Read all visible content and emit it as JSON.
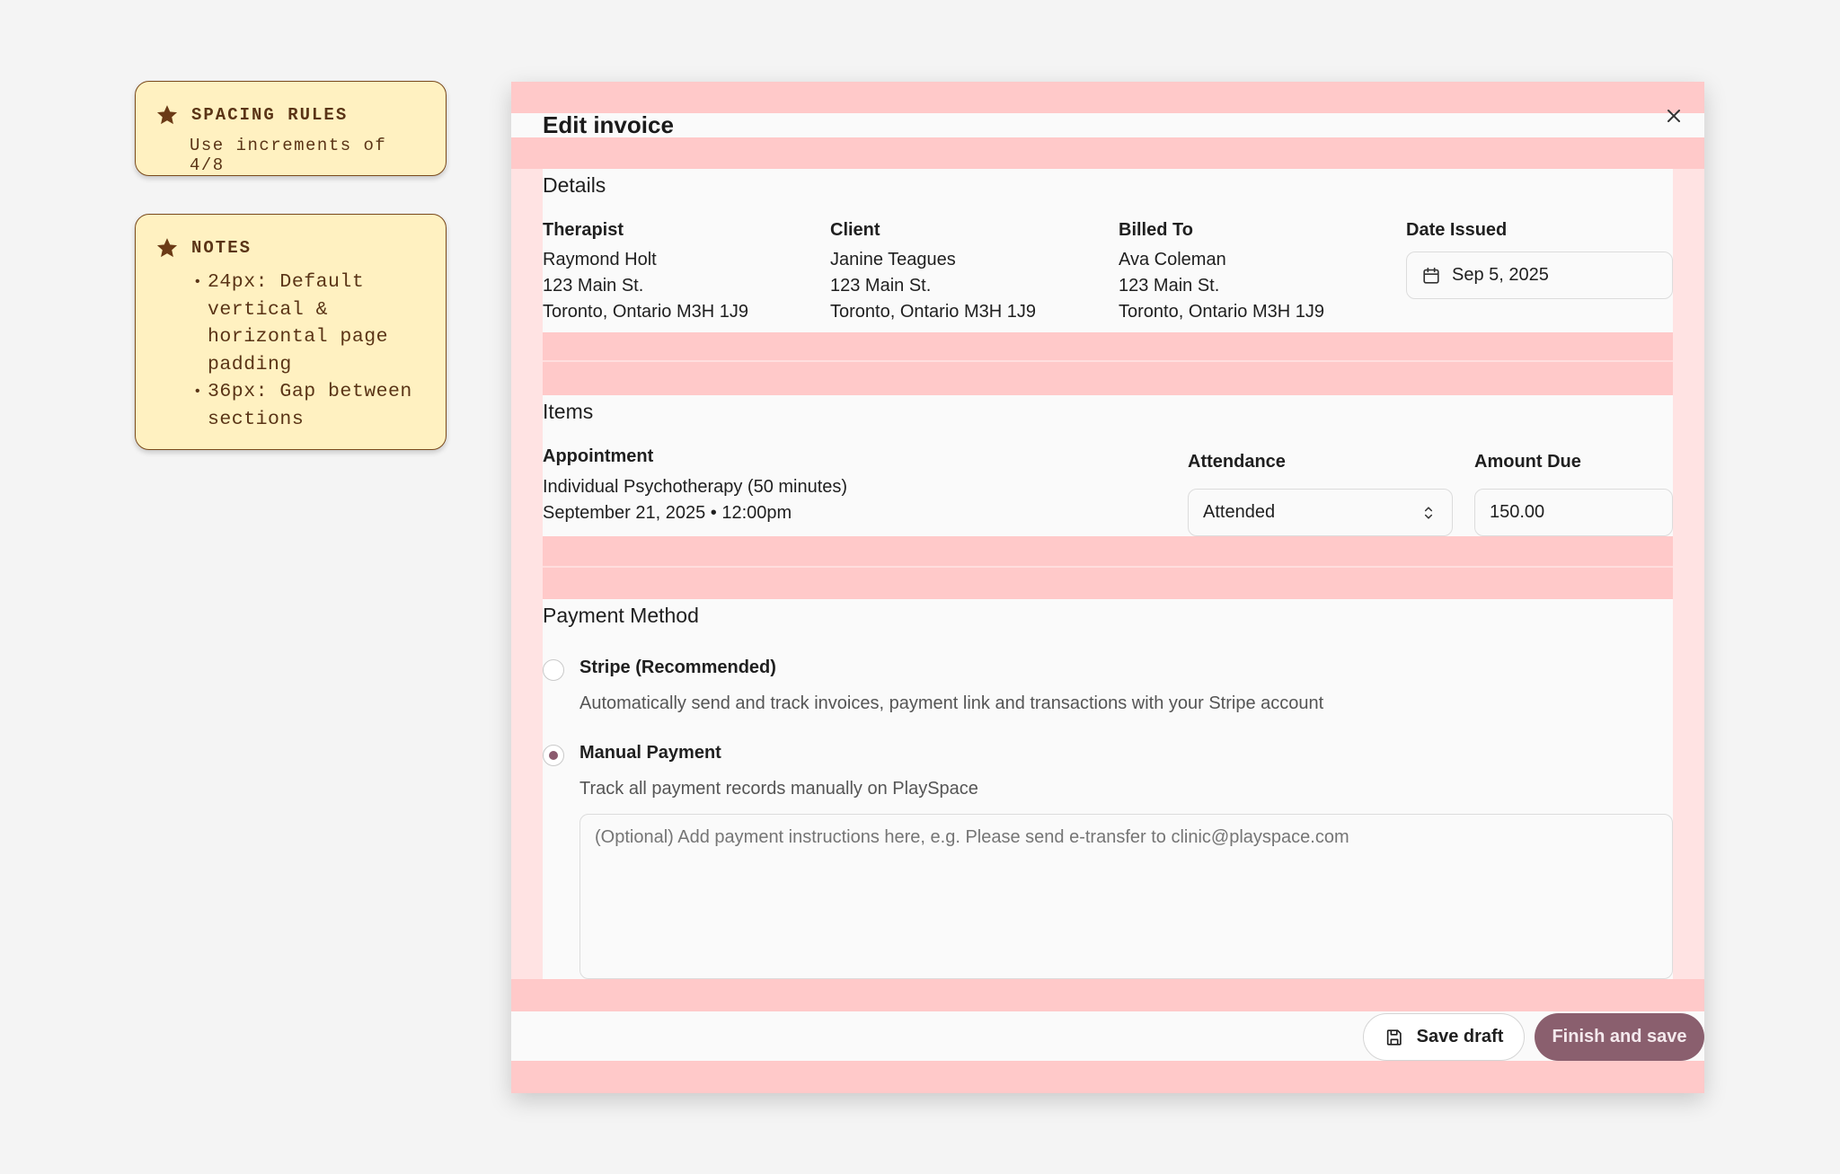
{
  "notes": {
    "rules": {
      "title": "SPACING RULES",
      "body": "Use increments of 4/8"
    },
    "notes": {
      "title": "NOTES",
      "items": [
        "24px: Default vertical & horizontal page padding",
        "36px: Gap between sections"
      ]
    }
  },
  "modal": {
    "title": "Edit invoice",
    "details": {
      "heading": "Details",
      "therapist": {
        "label": "Therapist",
        "name": "Raymond Holt",
        "street": "123 Main St.",
        "city": "Toronto, Ontario M3H 1J9"
      },
      "client": {
        "label": "Client",
        "name": "Janine Teagues",
        "street": "123 Main St.",
        "city": "Toronto, Ontario M3H 1J9"
      },
      "billed_to": {
        "label": "Billed To",
        "name": "Ava Coleman",
        "street": "123 Main St.",
        "city": "Toronto, Ontario M3H 1J9"
      },
      "date_issued": {
        "label": "Date Issued",
        "value": "Sep 5, 2025"
      }
    },
    "items": {
      "heading": "Items",
      "appointment": {
        "label": "Appointment",
        "name": "Individual Psychotherapy (50 minutes)",
        "when": "September 21, 2025 • 12:00pm"
      },
      "attendance": {
        "label": "Attendance",
        "value": "Attended"
      },
      "amount_due": {
        "label": "Amount Due",
        "value": "150.00"
      }
    },
    "payment": {
      "heading": "Payment Method",
      "stripe": {
        "label": "Stripe (Recommended)",
        "description": "Automatically send and track invoices, payment link and transactions with your Stripe account",
        "selected": false
      },
      "manual": {
        "label": "Manual Payment",
        "description": "Track all payment records manually on PlaySpace",
        "selected": true
      },
      "instructions_placeholder": "(Optional) Add payment instructions here, e.g. Please send e-transfer to clinic@playspace.com"
    },
    "footer": {
      "save_draft": "Save draft",
      "finish": "Finish and save"
    }
  },
  "colors": {
    "padding_overlay": "#ffc9c9",
    "primary": "#8a5f6e",
    "note_bg": "#fff1c1"
  }
}
